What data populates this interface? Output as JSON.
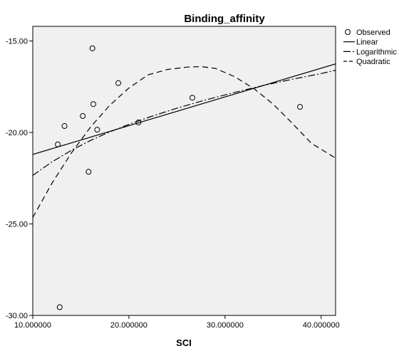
{
  "chart_data": {
    "type": "scatter",
    "title": "Binding_affinity",
    "xlabel": "SCI",
    "ylabel": "",
    "xlim": [
      10,
      41.5
    ],
    "ylim": [
      -30,
      -14.2
    ],
    "x_ticks": [
      10,
      20,
      30,
      40
    ],
    "x_tick_labels": [
      "10.000000",
      "20.000000",
      "30.000000",
      "40.000000"
    ],
    "y_ticks": [
      -15,
      -20,
      -25,
      -30
    ],
    "y_tick_labels": [
      "-15.00",
      "-20.00",
      "-25.00",
      "-30.00"
    ],
    "grid": false,
    "legend_position": "right",
    "colors": {
      "plot_background": "#f0f0f0",
      "ink": "#000000"
    },
    "series": [
      {
        "name": "Observed",
        "kind": "points",
        "x": [
          12.6,
          12.8,
          13.3,
          15.2,
          15.8,
          16.2,
          16.3,
          16.7,
          18.9,
          21.0,
          26.6,
          37.8
        ],
        "y": [
          -20.65,
          -29.55,
          -19.65,
          -19.1,
          -22.15,
          -15.4,
          -18.45,
          -19.85,
          -17.3,
          -19.45,
          -18.1,
          -18.6
        ]
      },
      {
        "name": "Linear",
        "kind": "line",
        "x": [
          10,
          41.5
        ],
        "y": [
          -21.2,
          -16.25
        ]
      },
      {
        "name": "Logarithmic",
        "kind": "line",
        "x": [
          10,
          12,
          14,
          16,
          18,
          20,
          22,
          25,
          28,
          31,
          34,
          37,
          40,
          41.5
        ],
        "y": [
          -22.35,
          -21.61,
          -20.98,
          -20.44,
          -19.97,
          -19.56,
          -19.18,
          -18.67,
          -18.22,
          -17.81,
          -17.43,
          -17.09,
          -16.78,
          -16.6
        ]
      },
      {
        "name": "Quadratic",
        "kind": "line",
        "x": [
          10,
          12,
          14,
          16,
          18,
          20,
          22,
          24,
          26,
          27.5,
          29,
          31,
          33,
          35,
          37,
          39,
          41.5
        ],
        "y": [
          -24.65,
          -22.77,
          -21.13,
          -19.71,
          -18.52,
          -17.57,
          -16.85,
          -16.56,
          -16.43,
          -16.4,
          -16.5,
          -16.95,
          -17.6,
          -18.45,
          -19.5,
          -20.6,
          -21.4
        ]
      }
    ]
  }
}
